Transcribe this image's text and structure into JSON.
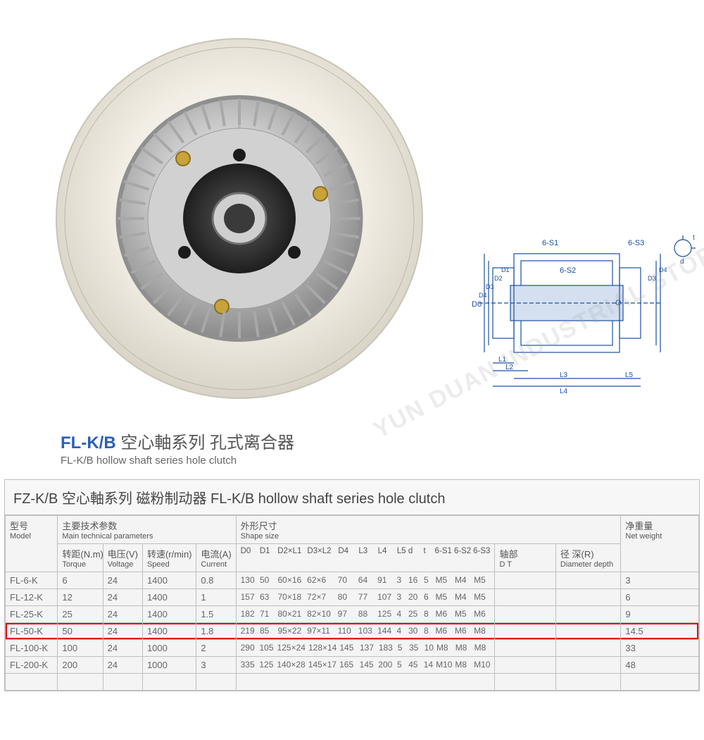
{
  "watermark": "YUN DUAN INDUSTRIAL STORE",
  "title": {
    "prefix": "FL-K/B",
    "cn": "空心軸系列 孔式离合器",
    "sub": "FL-K/B hollow shaft series hole clutch"
  },
  "table_title": "FZ-K/B 空心軸系列 磁粉制动器  FL-K/B hollow shaft series hole clutch",
  "headers": {
    "model_cn": "型号",
    "model_en": "Model",
    "main_params_cn": "主要技术参数",
    "main_params_en": "Main technical parameters",
    "torque_cn": "转距(N.m)",
    "torque_en": "Torque",
    "voltage_cn": "电压(V)",
    "voltage_en": "Voltage",
    "speed_cn": "转速(r/min)",
    "speed_en": "Speed",
    "current_cn": "电流(A)",
    "current_en": "Current",
    "shape_cn": "外形尺寸",
    "shape_en": "Shape size",
    "shape_cols": "D0 D1 D2×L1 D3×L2 D4  L3 L4 L5 d t 6-S1 6-S2 6-S3",
    "dt_cn": "轴部",
    "dt_en": "D  T",
    "dd_cn": "径  深(R)",
    "dd_en": "Diameter depth",
    "nw_cn": "净重量",
    "nw_en": "Net weight"
  },
  "highlight_row_index": 3,
  "rows": [
    {
      "model": "FL-6-K",
      "torque": "6",
      "voltage": "24",
      "speed": "1400",
      "current": "0.8",
      "shape": [
        "130",
        "50",
        "60×16",
        "62×6",
        "70",
        "64",
        "91",
        "3",
        "16",
        "5",
        "M5",
        "M4",
        "M5"
      ],
      "dt": "",
      "dd": "",
      "nw": "3"
    },
    {
      "model": "FL-12-K",
      "torque": "12",
      "voltage": "24",
      "speed": "1400",
      "current": "1",
      "shape": [
        "157",
        "63",
        "70×18",
        "72×7",
        "80",
        "77",
        "107",
        "3",
        "20",
        "6",
        "M5",
        "M4",
        "M5"
      ],
      "dt": "",
      "dd": "",
      "nw": "6"
    },
    {
      "model": "FL-25-K",
      "torque": "25",
      "voltage": "24",
      "speed": "1400",
      "current": "1.5",
      "shape": [
        "182",
        "71",
        "80×21",
        "82×10",
        "97",
        "88",
        "125",
        "4",
        "25",
        "8",
        "M6",
        "M5",
        "M6"
      ],
      "dt": "",
      "dd": "",
      "nw": "9"
    },
    {
      "model": "FL-50-K",
      "torque": "50",
      "voltage": "24",
      "speed": "1400",
      "current": "1.8",
      "shape": [
        "219",
        "85",
        "95×22",
        "97×11",
        "110",
        "103",
        "144",
        "4",
        "30",
        "8",
        "M6",
        "M6",
        "M8"
      ],
      "dt": "",
      "dd": "",
      "nw": "14.5"
    },
    {
      "model": "FL-100-K",
      "torque": "100",
      "voltage": "24",
      "speed": "1000",
      "current": "2",
      "shape": [
        "290",
        "105",
        "125×24",
        "128×14",
        "145",
        "137",
        "183",
        "5",
        "35",
        "10",
        "M8",
        "M8",
        "M8"
      ],
      "dt": "",
      "dd": "",
      "nw": "33"
    },
    {
      "model": "FL-200-K",
      "torque": "200",
      "voltage": "24",
      "speed": "1000",
      "current": "3",
      "shape": [
        "335",
        "125",
        "140×28",
        "145×17",
        "165",
        "145",
        "200",
        "5",
        "45",
        "14",
        "M10",
        "M8",
        "M10"
      ],
      "dt": "",
      "dd": "",
      "nw": "48"
    }
  ],
  "shape_col_widths": [
    26,
    24,
    42,
    44,
    28,
    26,
    26,
    14,
    20,
    14,
    26,
    26,
    26
  ],
  "diagram_labels": {
    "s1": "6-S1",
    "s2": "6-S2",
    "s3": "6-S3",
    "d0": "D0",
    "d1": "D1",
    "d2": "D2",
    "d3": "D3",
    "d4": "D4",
    "d4b": "D4",
    "d3b": "D3",
    "o": "O",
    "l1": "L1",
    "l2": "L2",
    "l3": "L3",
    "l4": "L4",
    "l5": "L5",
    "t": "t",
    "d": "d"
  },
  "colors": {
    "diagram_line": "#1a4fa3",
    "table_border": "#bfbfbf",
    "highlight": "#e30613",
    "text": "#555555",
    "title_blue": "#2b5fb8"
  }
}
